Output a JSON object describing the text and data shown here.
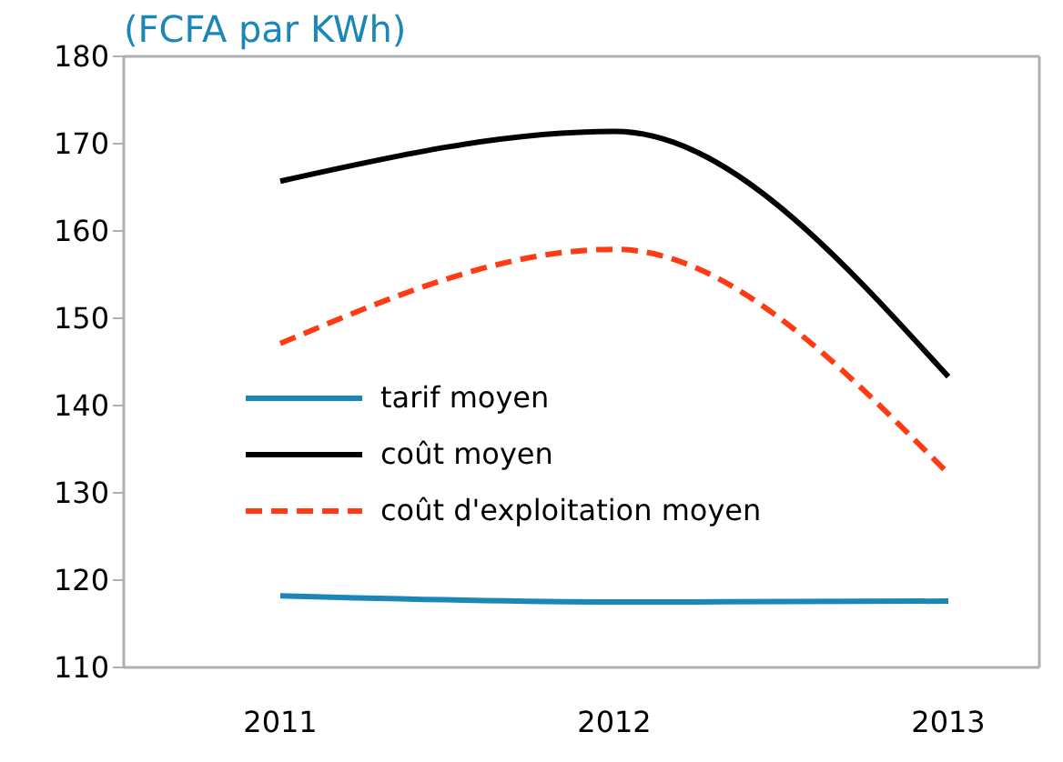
{
  "chart_data": {
    "type": "line",
    "title": "(FCFA par KWh)",
    "categories": [
      "2011",
      "2012",
      "2013"
    ],
    "series": [
      {
        "name": "tarif moyen",
        "color": "#1a87b8",
        "values": [
          118.2,
          117.5,
          117.6
        ]
      },
      {
        "name": "coût moyen",
        "color": "#000000",
        "values": [
          165.7,
          171.4,
          143.3
        ]
      },
      {
        "name": "coût d'exploitation moyen",
        "color": "#ff3b14",
        "values": [
          147.1,
          157.9,
          132.2
        ],
        "line_style": "dashed"
      }
    ],
    "ylim": [
      110,
      180
    ],
    "yticks": [
      110,
      120,
      130,
      140,
      150,
      160,
      170,
      180
    ],
    "legend": "left",
    "marker": "none"
  }
}
